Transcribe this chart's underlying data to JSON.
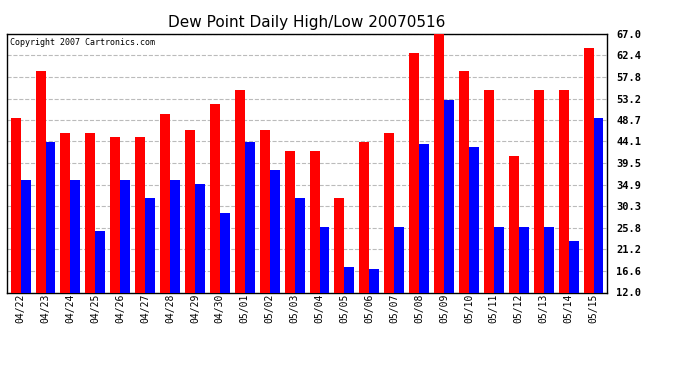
{
  "title": "Dew Point Daily High/Low 20070516",
  "copyright": "Copyright 2007 Cartronics.com",
  "categories": [
    "04/22",
    "04/23",
    "04/24",
    "04/25",
    "04/26",
    "04/27",
    "04/28",
    "04/29",
    "04/30",
    "05/01",
    "05/02",
    "05/03",
    "05/04",
    "05/05",
    "05/06",
    "05/07",
    "05/08",
    "05/09",
    "05/10",
    "05/11",
    "05/12",
    "05/13",
    "05/14",
    "05/15"
  ],
  "highs": [
    49.0,
    59.0,
    46.0,
    46.0,
    45.0,
    45.0,
    50.0,
    46.5,
    52.0,
    55.0,
    46.5,
    42.0,
    42.0,
    32.0,
    44.0,
    46.0,
    63.0,
    67.0,
    59.0,
    55.0,
    41.0,
    55.0,
    55.0,
    64.0
  ],
  "lows": [
    36.0,
    44.0,
    36.0,
    25.0,
    36.0,
    32.0,
    36.0,
    35.0,
    29.0,
    44.0,
    38.0,
    32.0,
    26.0,
    17.5,
    17.0,
    26.0,
    43.5,
    53.0,
    43.0,
    26.0,
    26.0,
    26.0,
    23.0,
    49.0
  ],
  "high_color": "#ff0000",
  "low_color": "#0000ff",
  "bg_color": "#ffffff",
  "plot_bg_color": "#ffffff",
  "grid_color": "#bbbbbb",
  "yticks": [
    12.0,
    16.6,
    21.2,
    25.8,
    30.3,
    34.9,
    39.5,
    44.1,
    48.7,
    53.2,
    57.8,
    62.4,
    67.0
  ],
  "ymin": 12.0,
  "ymax": 67.0,
  "bar_width": 0.4
}
